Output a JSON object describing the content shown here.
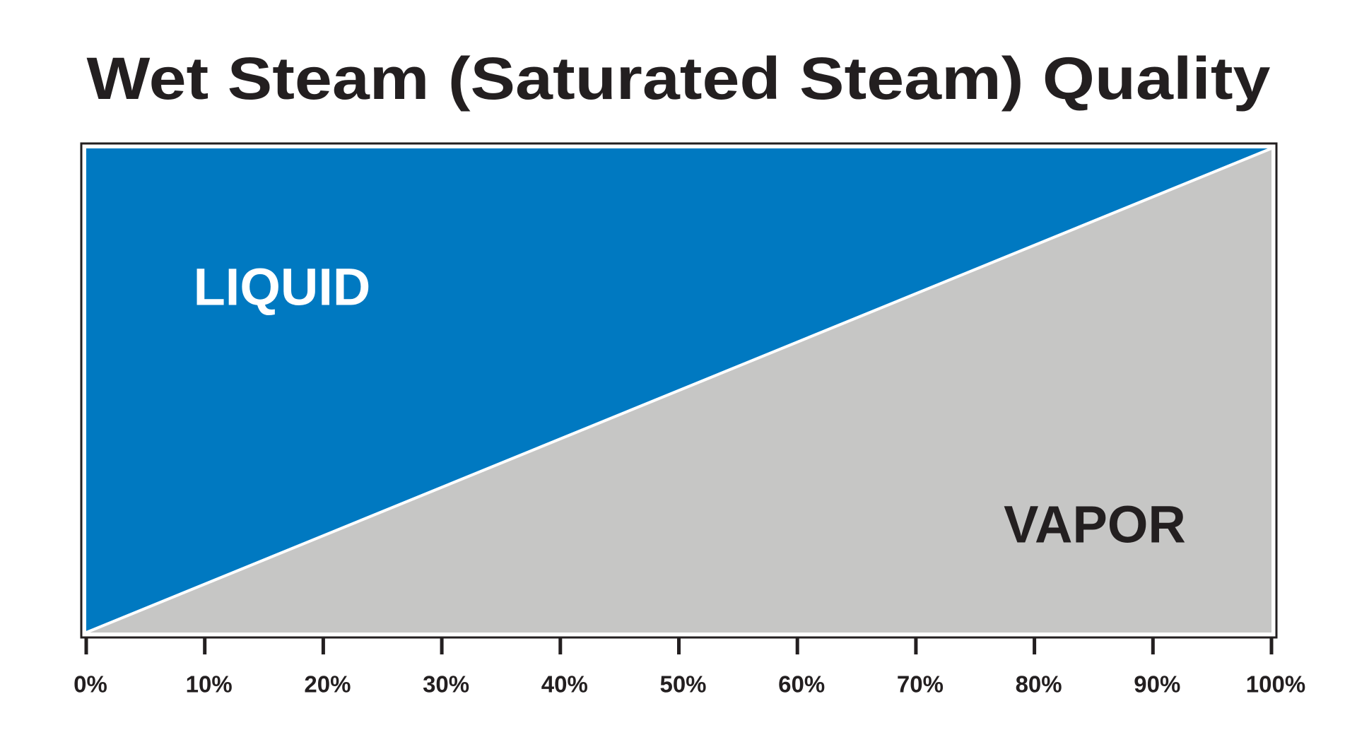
{
  "chart_data": {
    "type": "area",
    "title": "Wet Steam (Saturated Steam) Quality",
    "x": [
      0,
      100
    ],
    "stacked": true,
    "series": [
      {
        "name": "VAPOR",
        "color": "#c6c6c5",
        "values": [
          0,
          100
        ]
      },
      {
        "name": "LIQUID",
        "color": "#0079c1",
        "values": [
          100,
          0
        ]
      }
    ],
    "xlim": [
      0,
      100
    ],
    "ylim": [
      0,
      100
    ],
    "xticks": [
      {
        "value": 0,
        "label": "0%"
      },
      {
        "value": 10,
        "label": "10%"
      },
      {
        "value": 20,
        "label": "20%"
      },
      {
        "value": 30,
        "label": "30%"
      },
      {
        "value": 40,
        "label": "40%"
      },
      {
        "value": 50,
        "label": "50%"
      },
      {
        "value": 60,
        "label": "60%"
      },
      {
        "value": 70,
        "label": "70%"
      },
      {
        "value": 80,
        "label": "80%"
      },
      {
        "value": 90,
        "label": "90%"
      },
      {
        "value": 100,
        "label": "100%"
      }
    ],
    "grid": false
  }
}
